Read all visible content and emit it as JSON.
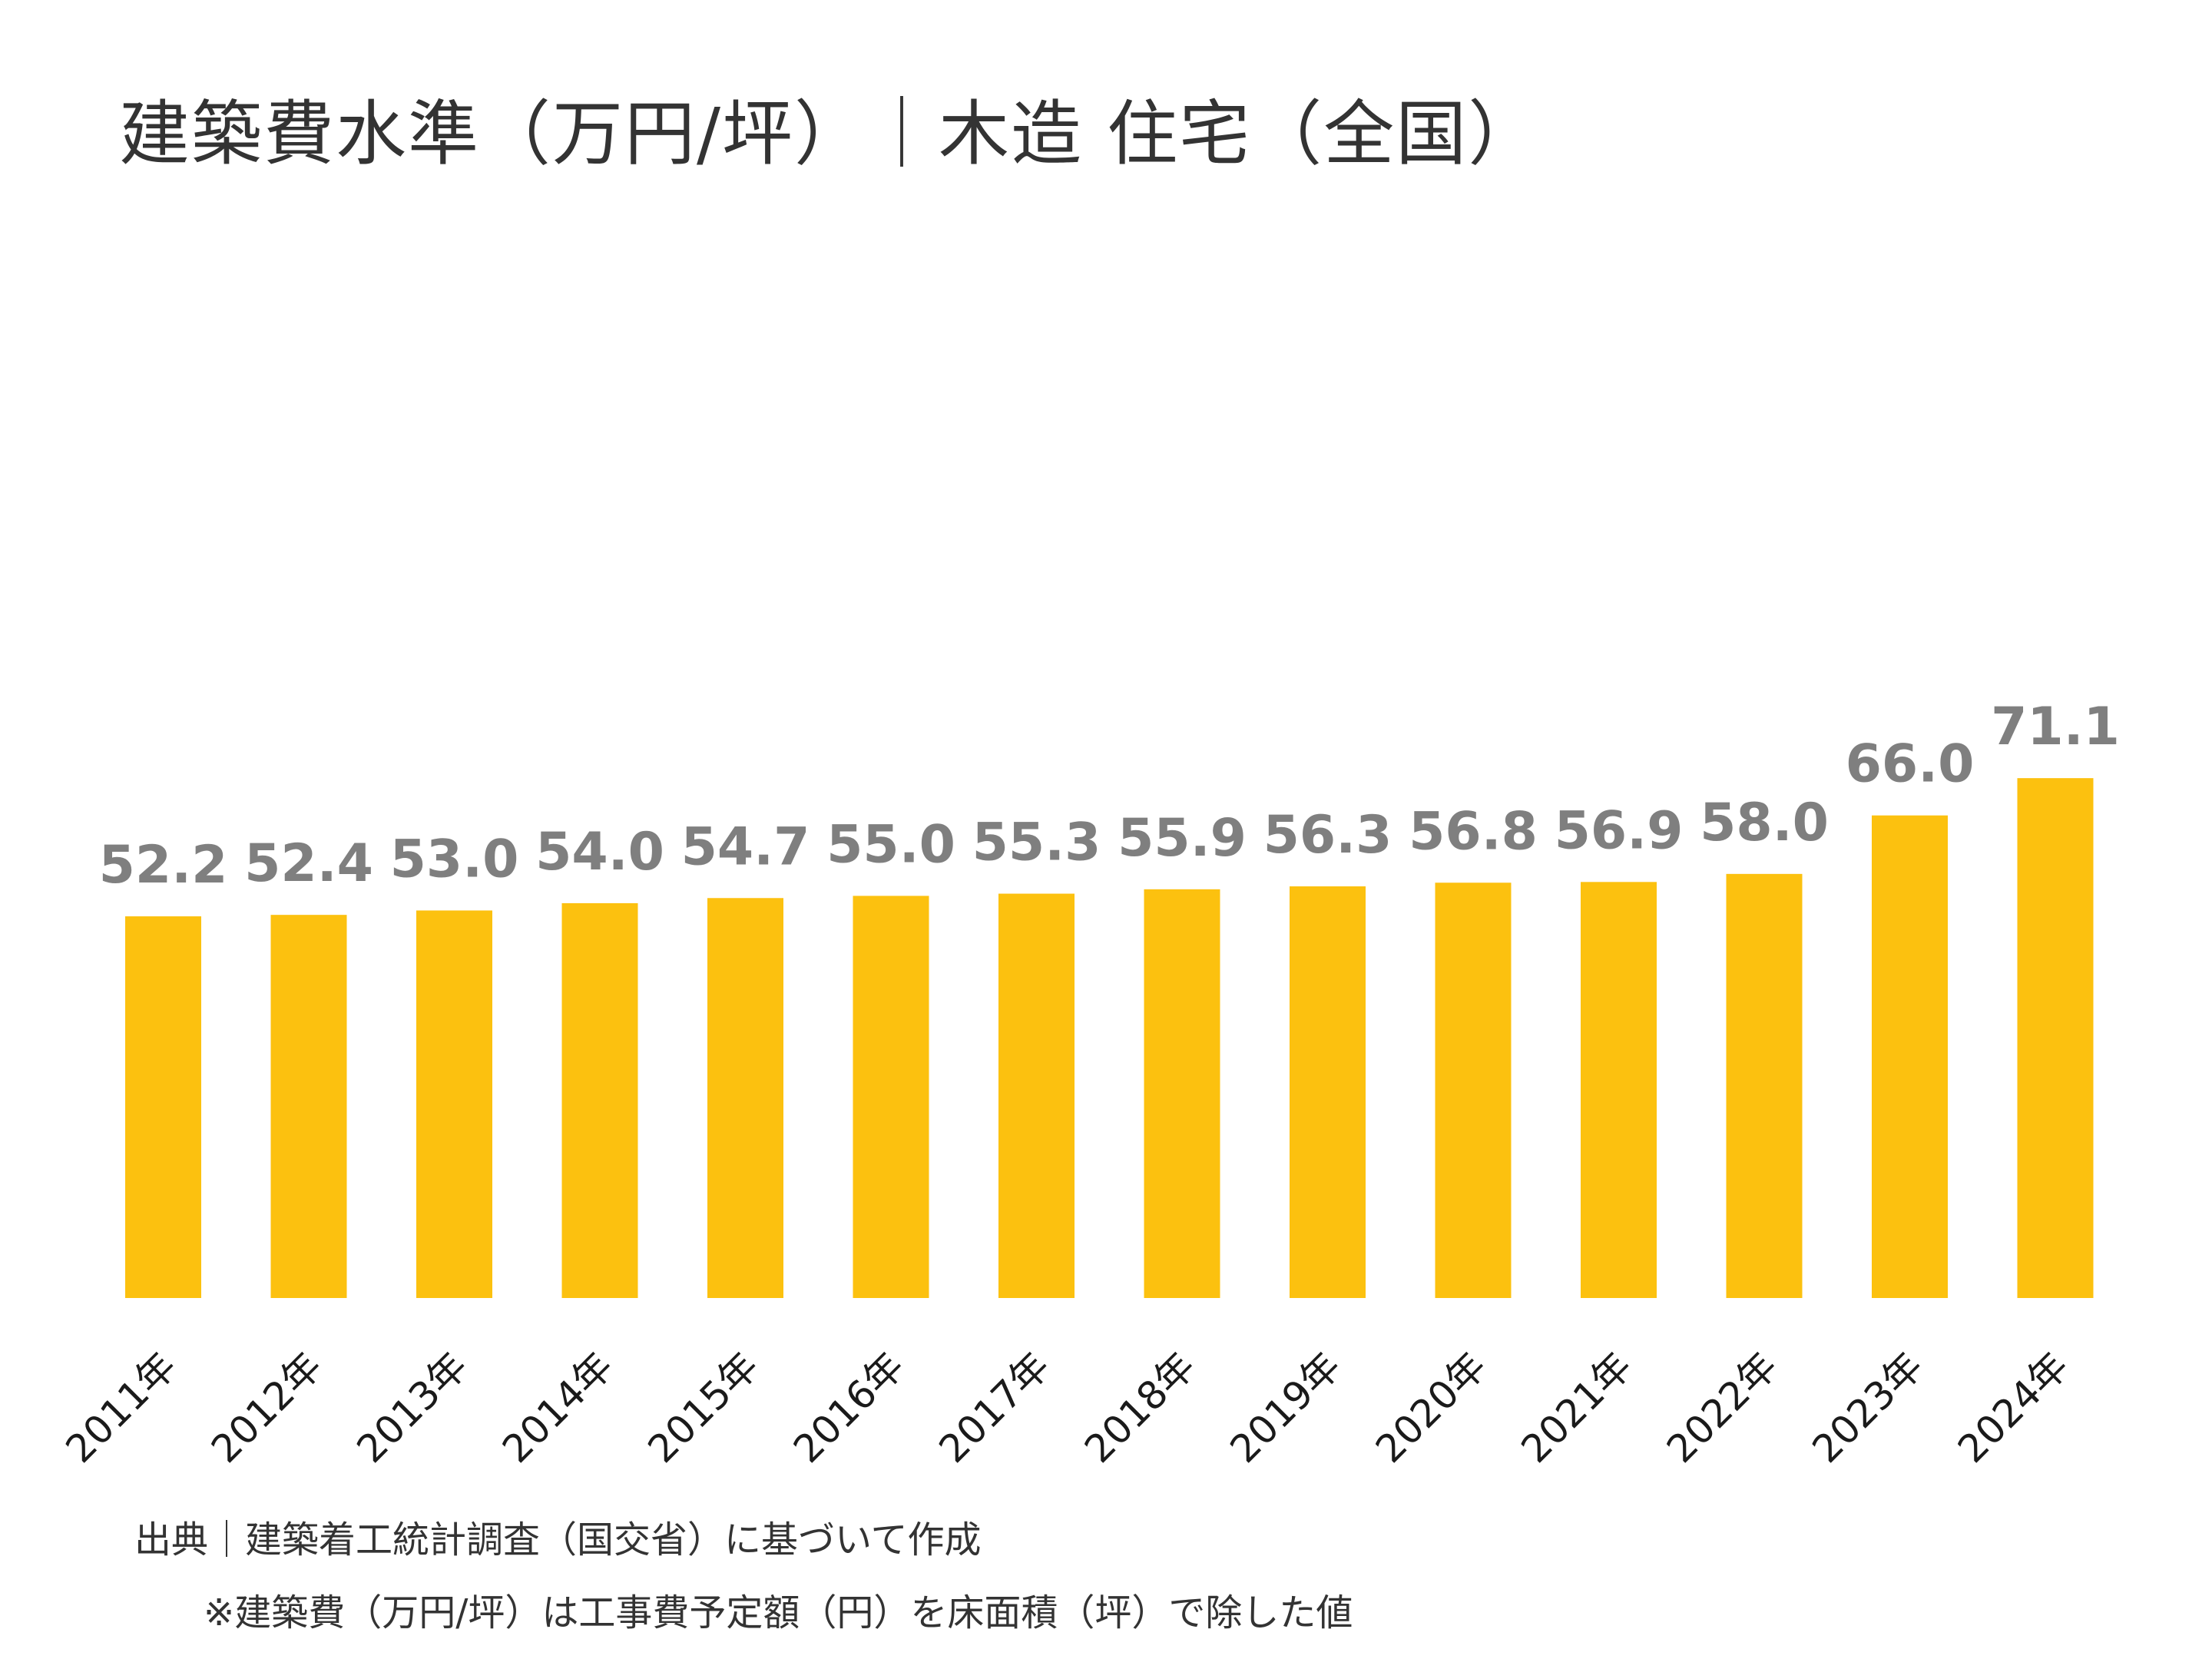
{
  "chart_data": {
    "type": "bar",
    "title": "建築費水準（万円/坪）｜木造 住宅（全国）",
    "categories": [
      "2011年",
      "2012年",
      "2013年",
      "2014年",
      "2015年",
      "2016年",
      "2017年",
      "2018年",
      "2019年",
      "2020年",
      "2021年",
      "2022年",
      "2023年",
      "2024年"
    ],
    "values": [
      52.2,
      52.4,
      53.0,
      54.0,
      54.7,
      55.0,
      55.3,
      55.9,
      56.3,
      56.8,
      56.9,
      58.0,
      66.0,
      71.1
    ],
    "value_labels": [
      "52.2",
      "52.4",
      "53.0",
      "54.0",
      "54.7",
      "55.0",
      "55.3",
      "55.9",
      "56.3",
      "56.8",
      "56.9",
      "58.0",
      "66.0",
      "71.1"
    ],
    "xlabel": "",
    "ylabel": "",
    "ylim": [
      0,
      80
    ],
    "grid": false,
    "legend": "none",
    "bar_color": "#FCC10F",
    "label_color": "#7F7F7F"
  },
  "notes": {
    "source": "出典｜建築着工統計調査（国交省）に基づいて作成",
    "definition": "※建築費（万円/坪）は工事費予定額（円）を床面積（坪）で除した値"
  }
}
